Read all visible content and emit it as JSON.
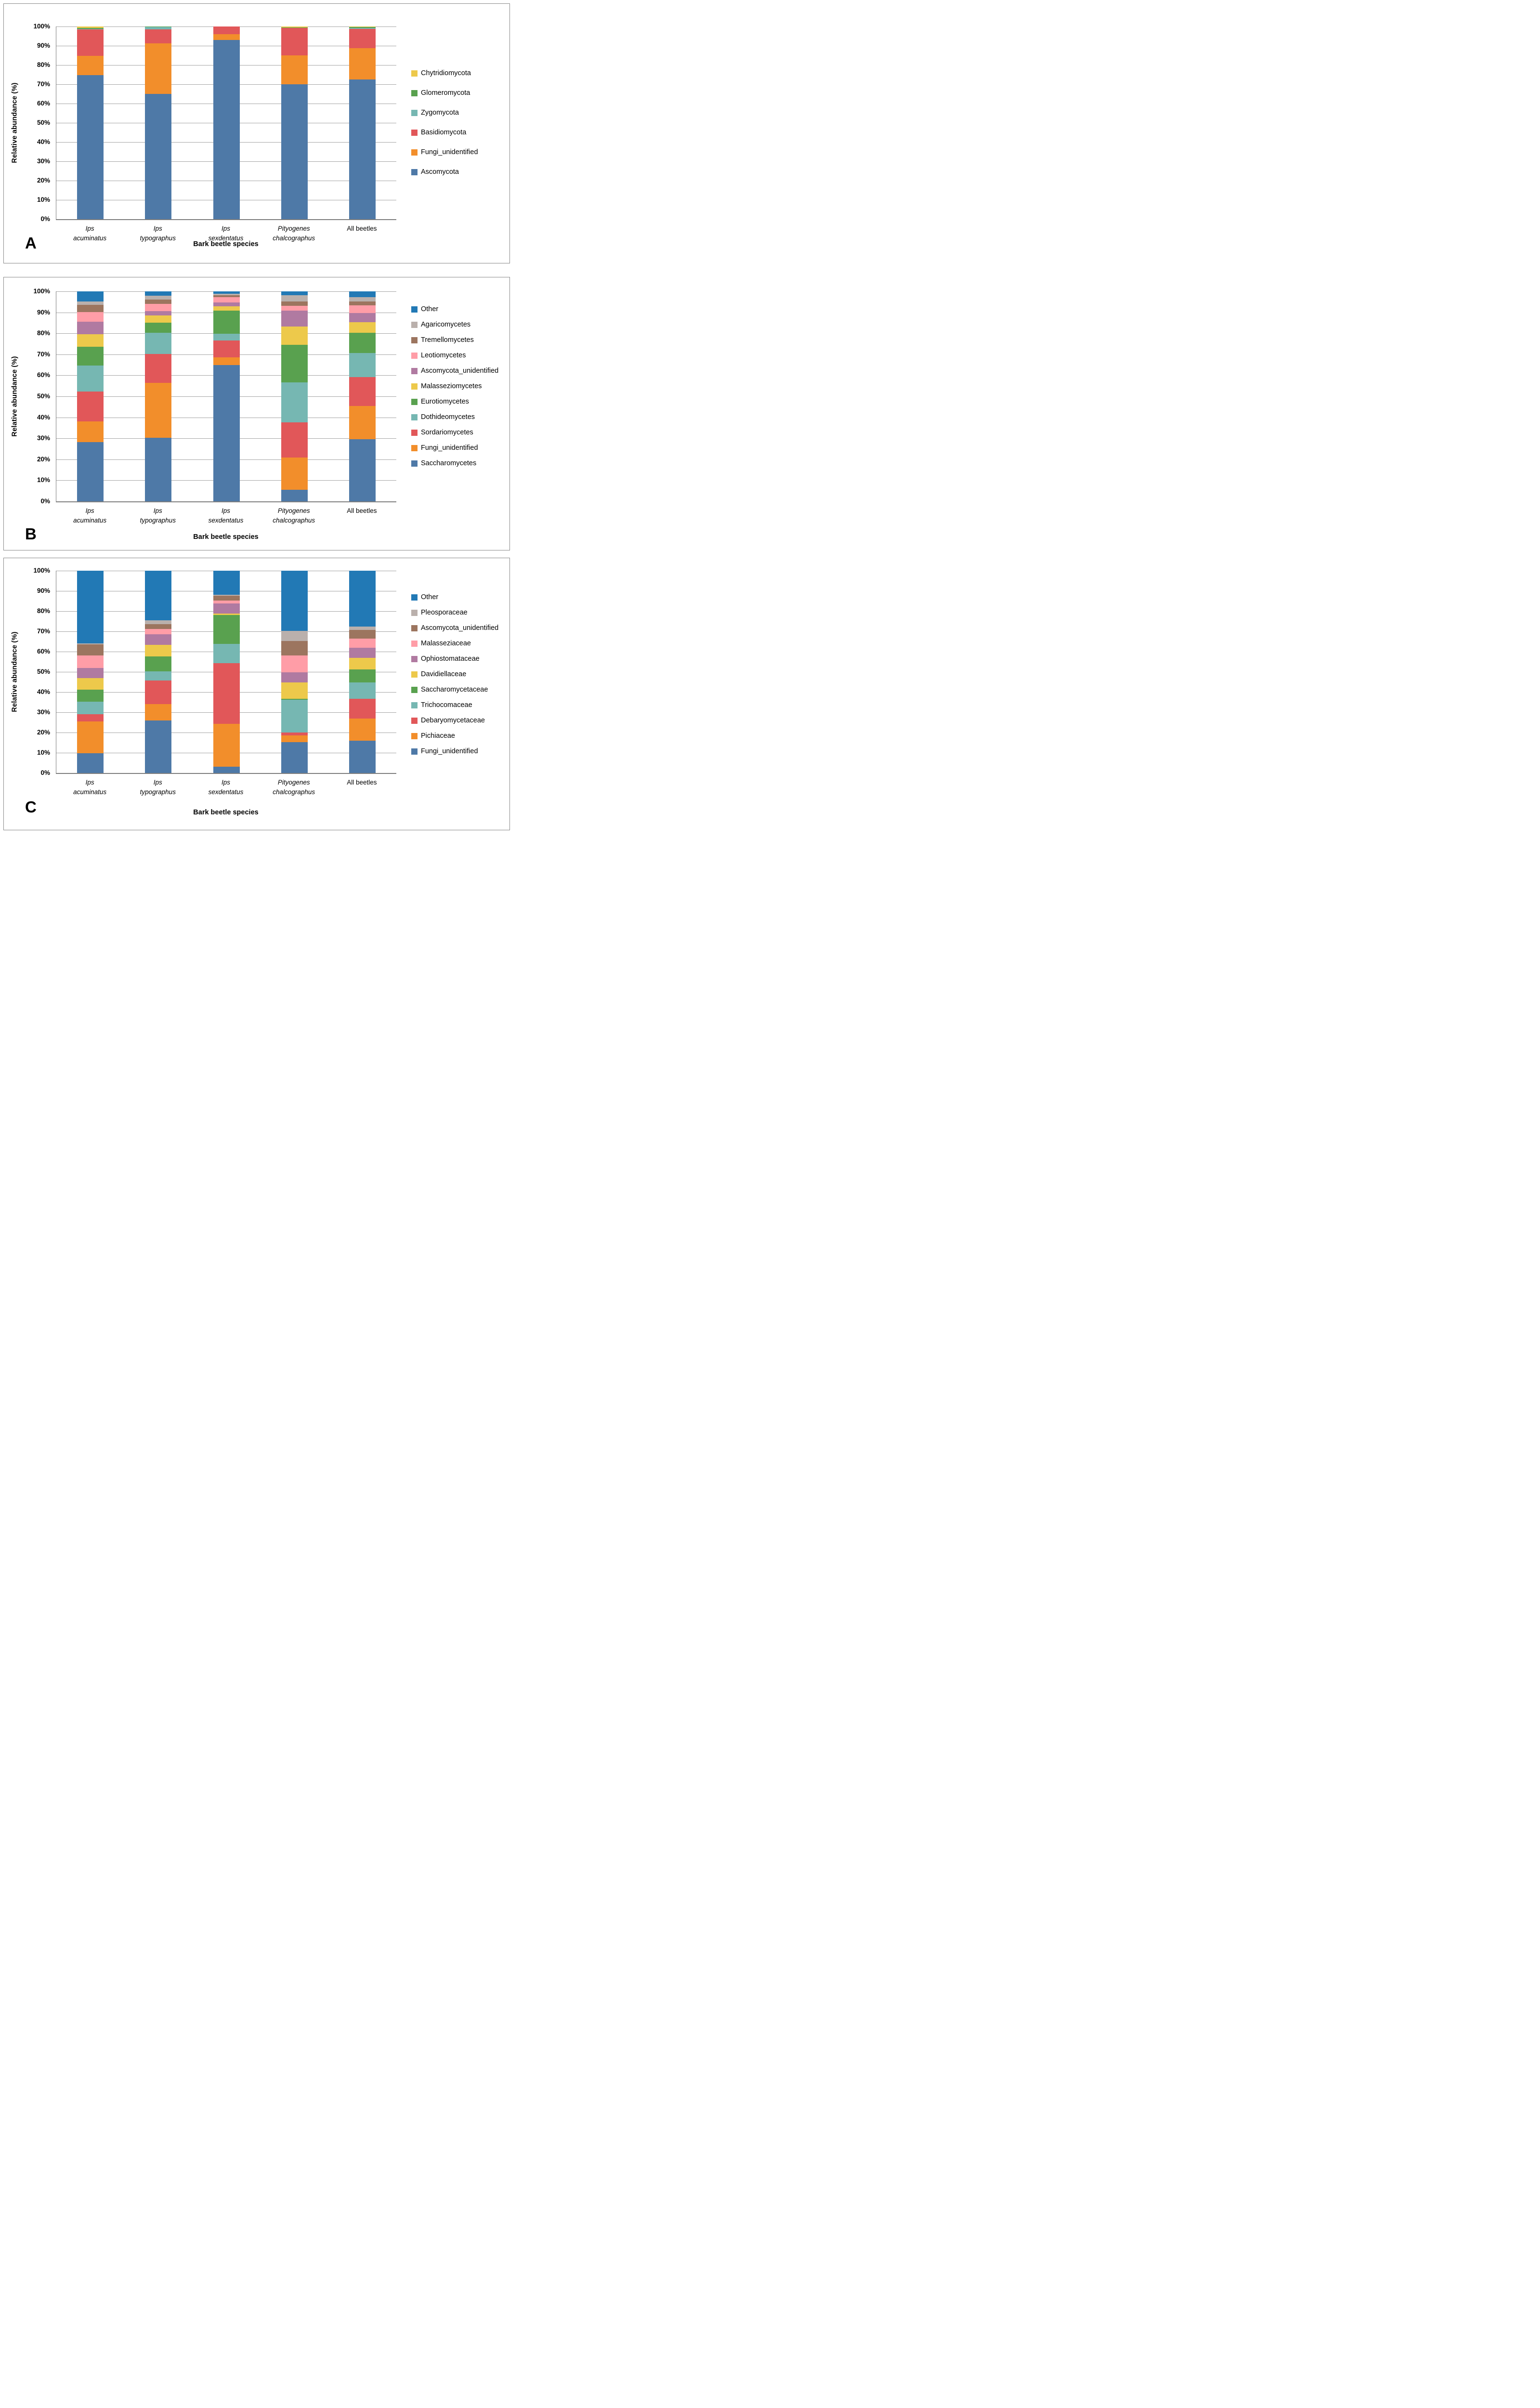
{
  "figure": {
    "panel_labels": [
      "A",
      "B",
      "C"
    ],
    "y_axis_title": "Relative abundance (%)",
    "x_axis_title": "Bark beetle species",
    "y_tick_labels": [
      "0%",
      "10%",
      "20%",
      "30%",
      "40%",
      "50%",
      "60%",
      "70%",
      "80%",
      "90%",
      "100%"
    ]
  },
  "palette": {
    "steel_blue": "#4e79a7",
    "orange": "#f28e2b",
    "red": "#e15759",
    "teal": "#76b7b2",
    "green": "#59a14f",
    "yellow": "#edc94b",
    "purple": "#b07aa1",
    "pink": "#ff9da7",
    "brown": "#9c755f",
    "gray": "#bab0ac",
    "other_blue": "#2279b5",
    "gridline": "#a5a5a5",
    "axis": "#7f7f7f"
  },
  "chart_data": [
    {
      "type": "bar",
      "stacked": true,
      "panel_label": "A",
      "ylabel": "Relative abundance (%)",
      "xlabel": "Bark beetle species",
      "ylim": [
        0,
        100
      ],
      "grid": true,
      "legend_position": "right",
      "y_tick_labels": [
        "0%",
        "10%",
        "20%",
        "30%",
        "40%",
        "50%",
        "60%",
        "70%",
        "80%",
        "90%",
        "100%"
      ],
      "categories": [
        {
          "label": "Ips acuminatus",
          "line1": "Ips",
          "line2": "acuminatus",
          "italic": true
        },
        {
          "label": "Ips typographus",
          "line1": "Ips",
          "line2": "typographus",
          "italic": true
        },
        {
          "label": "Ips sexdentatus",
          "line1": "Ips",
          "line2": "sexdentatus",
          "italic": true
        },
        {
          "label": "Pityogenes chalcographus",
          "line1": "Pityogenes",
          "line2": "chalcographus",
          "italic": true
        },
        {
          "label": "All beetles",
          "line1": "All beetles",
          "line2": "",
          "italic": false
        }
      ],
      "series_order": "bottom-to-top",
      "series": [
        {
          "name": "Ascomycota",
          "color": "#4e79a7",
          "values": [
            74.8,
            65.0,
            93.0,
            70.0,
            72.5
          ]
        },
        {
          "name": "Fungi_unidentified",
          "color": "#f28e2b",
          "values": [
            10.0,
            26.2,
            3.1,
            15.0,
            16.3
          ]
        },
        {
          "name": "Basidiomycota",
          "color": "#e15759",
          "values": [
            13.7,
            7.4,
            3.9,
            14.2,
            10.0
          ]
        },
        {
          "name": "Zygomycota",
          "color": "#76b7b2",
          "values": [
            0.3,
            1.2,
            0.0,
            0.0,
            0.5
          ]
        },
        {
          "name": "Glomeromycota",
          "color": "#59a14f",
          "values": [
            0.5,
            0.2,
            0.0,
            0.3,
            0.4
          ]
        },
        {
          "name": "Chytridiomycota",
          "color": "#edc94b",
          "values": [
            0.7,
            0.0,
            0.0,
            0.5,
            0.3
          ]
        }
      ],
      "legend_top_to_bottom": [
        "Chytridiomycota",
        "Glomeromycota",
        "Zygomycota",
        "Basidiomycota",
        "Fungi_unidentified",
        "Ascomycota"
      ]
    },
    {
      "type": "bar",
      "stacked": true,
      "panel_label": "B",
      "ylabel": "Relative abundance (%)",
      "xlabel": "Bark beetle species",
      "ylim": [
        0,
        100
      ],
      "grid": true,
      "legend_position": "right",
      "y_tick_labels": [
        "0%",
        "10%",
        "20%",
        "30%",
        "40%",
        "50%",
        "60%",
        "70%",
        "80%",
        "90%",
        "100%"
      ],
      "categories": [
        {
          "label": "Ips acuminatus",
          "line1": "Ips",
          "line2": "acuminatus",
          "italic": true
        },
        {
          "label": "Ips typographus",
          "line1": "Ips",
          "line2": "typographus",
          "italic": true
        },
        {
          "label": "Ips sexdentatus",
          "line1": "Ips",
          "line2": "sexdentatus",
          "italic": true
        },
        {
          "label": "Pityogenes chalcographus",
          "line1": "Pityogenes",
          "line2": "chalcographus",
          "italic": true
        },
        {
          "label": "All beetles",
          "line1": "All beetles",
          "line2": "",
          "italic": false
        }
      ],
      "series_order": "bottom-to-top",
      "series": [
        {
          "name": "Saccharomycetes",
          "color": "#4e79a7",
          "values": [
            28.2,
            30.2,
            65.0,
            5.5,
            29.5
          ]
        },
        {
          "name": "Fungi_unidentified",
          "color": "#f28e2b",
          "values": [
            9.9,
            26.3,
            3.5,
            15.3,
            16.0
          ]
        },
        {
          "name": "Sordariomycetes",
          "color": "#e15759",
          "values": [
            14.3,
            13.8,
            8.2,
            16.9,
            13.7
          ]
        },
        {
          "name": "Dothideomycetes",
          "color": "#76b7b2",
          "values": [
            12.3,
            9.9,
            3.2,
            19.0,
            11.5
          ]
        },
        {
          "name": "Eurotiomycetes",
          "color": "#59a14f",
          "values": [
            8.9,
            4.9,
            10.9,
            17.8,
            9.5
          ]
        },
        {
          "name": "Malasseziomycetes",
          "color": "#edc94b",
          "values": [
            5.9,
            3.4,
            2.0,
            8.7,
            5.1
          ]
        },
        {
          "name": "Ascomycota_unidentified",
          "color": "#b07aa1",
          "values": [
            6.1,
            2.2,
            2.0,
            7.7,
            4.3
          ]
        },
        {
          "name": "Leotiomycetes",
          "color": "#ff9da7",
          "values": [
            4.6,
            3.4,
            2.5,
            2.3,
            3.7
          ]
        },
        {
          "name": "Tremellomycetes",
          "color": "#9c755f",
          "values": [
            3.5,
            2.1,
            0.8,
            1.9,
            2.0
          ]
        },
        {
          "name": "Agaricomycetes",
          "color": "#bab0ac",
          "values": [
            1.5,
            1.7,
            0.8,
            3.0,
            1.9
          ]
        },
        {
          "name": "Other",
          "color": "#2279b5",
          "values": [
            4.8,
            2.1,
            1.1,
            1.9,
            2.8
          ]
        }
      ],
      "legend_top_to_bottom": [
        "Other",
        "Agaricomycetes",
        "Tremellomycetes",
        "Leotiomycetes",
        "Ascomycota_unidentified",
        "Malasseziomycetes",
        "Eurotiomycetes",
        "Dothideomycetes",
        "Sordariomycetes",
        "Fungi_unidentified",
        "Saccharomycetes"
      ]
    },
    {
      "type": "bar",
      "stacked": true,
      "panel_label": "C",
      "ylabel": "Relative abundance (%)",
      "xlabel": "Bark beetle species",
      "ylim": [
        0,
        100
      ],
      "grid": true,
      "legend_position": "right",
      "y_tick_labels": [
        "0%",
        "10%",
        "20%",
        "30%",
        "40%",
        "50%",
        "60%",
        "70%",
        "80%",
        "90%",
        "100%"
      ],
      "categories": [
        {
          "label": "Ips acuminatus",
          "line1": "Ips",
          "line2": "acuminatus",
          "italic": true
        },
        {
          "label": "Ips typographus",
          "line1": "Ips",
          "line2": "typographus",
          "italic": true
        },
        {
          "label": "Ips sexdentatus",
          "line1": "Ips",
          "line2": "sexdentatus",
          "italic": true
        },
        {
          "label": "Pityogenes chalcographus",
          "line1": "Pityogenes",
          "line2": "chalcographus",
          "italic": true
        },
        {
          "label": "All beetles",
          "line1": "All beetles",
          "line2": "",
          "italic": false
        }
      ],
      "series_order": "bottom-to-top",
      "series": [
        {
          "name": "Fungi_unidentified",
          "color": "#4e79a7",
          "values": [
            9.8,
            26.0,
            3.0,
            15.3,
            15.9
          ]
        },
        {
          "name": "Pichiaceae",
          "color": "#f28e2b",
          "values": [
            15.6,
            8.1,
            21.3,
            3.3,
            11.0
          ]
        },
        {
          "name": "Debaryomycetaceae",
          "color": "#e15759",
          "values": [
            3.6,
            11.6,
            30.0,
            1.5,
            9.7
          ]
        },
        {
          "name": "Trichocomaceae",
          "color": "#76b7b2",
          "values": [
            6.2,
            4.5,
            9.6,
            16.1,
            8.1
          ]
        },
        {
          "name": "Saccharomycetaceae",
          "color": "#59a14f",
          "values": [
            5.9,
            7.5,
            14.1,
            0.4,
            6.4
          ]
        },
        {
          "name": "Davidiellaceae",
          "color": "#edc94b",
          "values": [
            5.8,
            5.6,
            0.9,
            8.1,
            5.8
          ]
        },
        {
          "name": "Ophiostomataceae",
          "color": "#b07aa1",
          "values": [
            5.0,
            5.4,
            4.9,
            5.0,
            4.9
          ]
        },
        {
          "name": "Malasseziaceae",
          "color": "#ff9da7",
          "values": [
            6.2,
            2.6,
            1.5,
            8.3,
            4.6
          ]
        },
        {
          "name": "Ascomycota_unidentified",
          "color": "#9c755f",
          "values": [
            5.4,
            2.3,
            2.4,
            7.3,
            4.3
          ]
        },
        {
          "name": "Pleosporaceae",
          "color": "#bab0ac",
          "values": [
            0.6,
            1.8,
            0.5,
            4.9,
            1.8
          ]
        },
        {
          "name": "Other",
          "color": "#2279b5",
          "values": [
            35.9,
            24.6,
            11.8,
            29.8,
            27.5
          ]
        }
      ],
      "legend_top_to_bottom": [
        "Other",
        "Pleosporaceae",
        "Ascomycota_unidentified",
        "Malasseziaceae",
        "Ophiostomataceae",
        "Davidiellaceae",
        "Saccharomycetaceae",
        "Trichocomaceae",
        "Debaryomycetaceae",
        "Pichiaceae",
        "Fungi_unidentified"
      ]
    }
  ]
}
